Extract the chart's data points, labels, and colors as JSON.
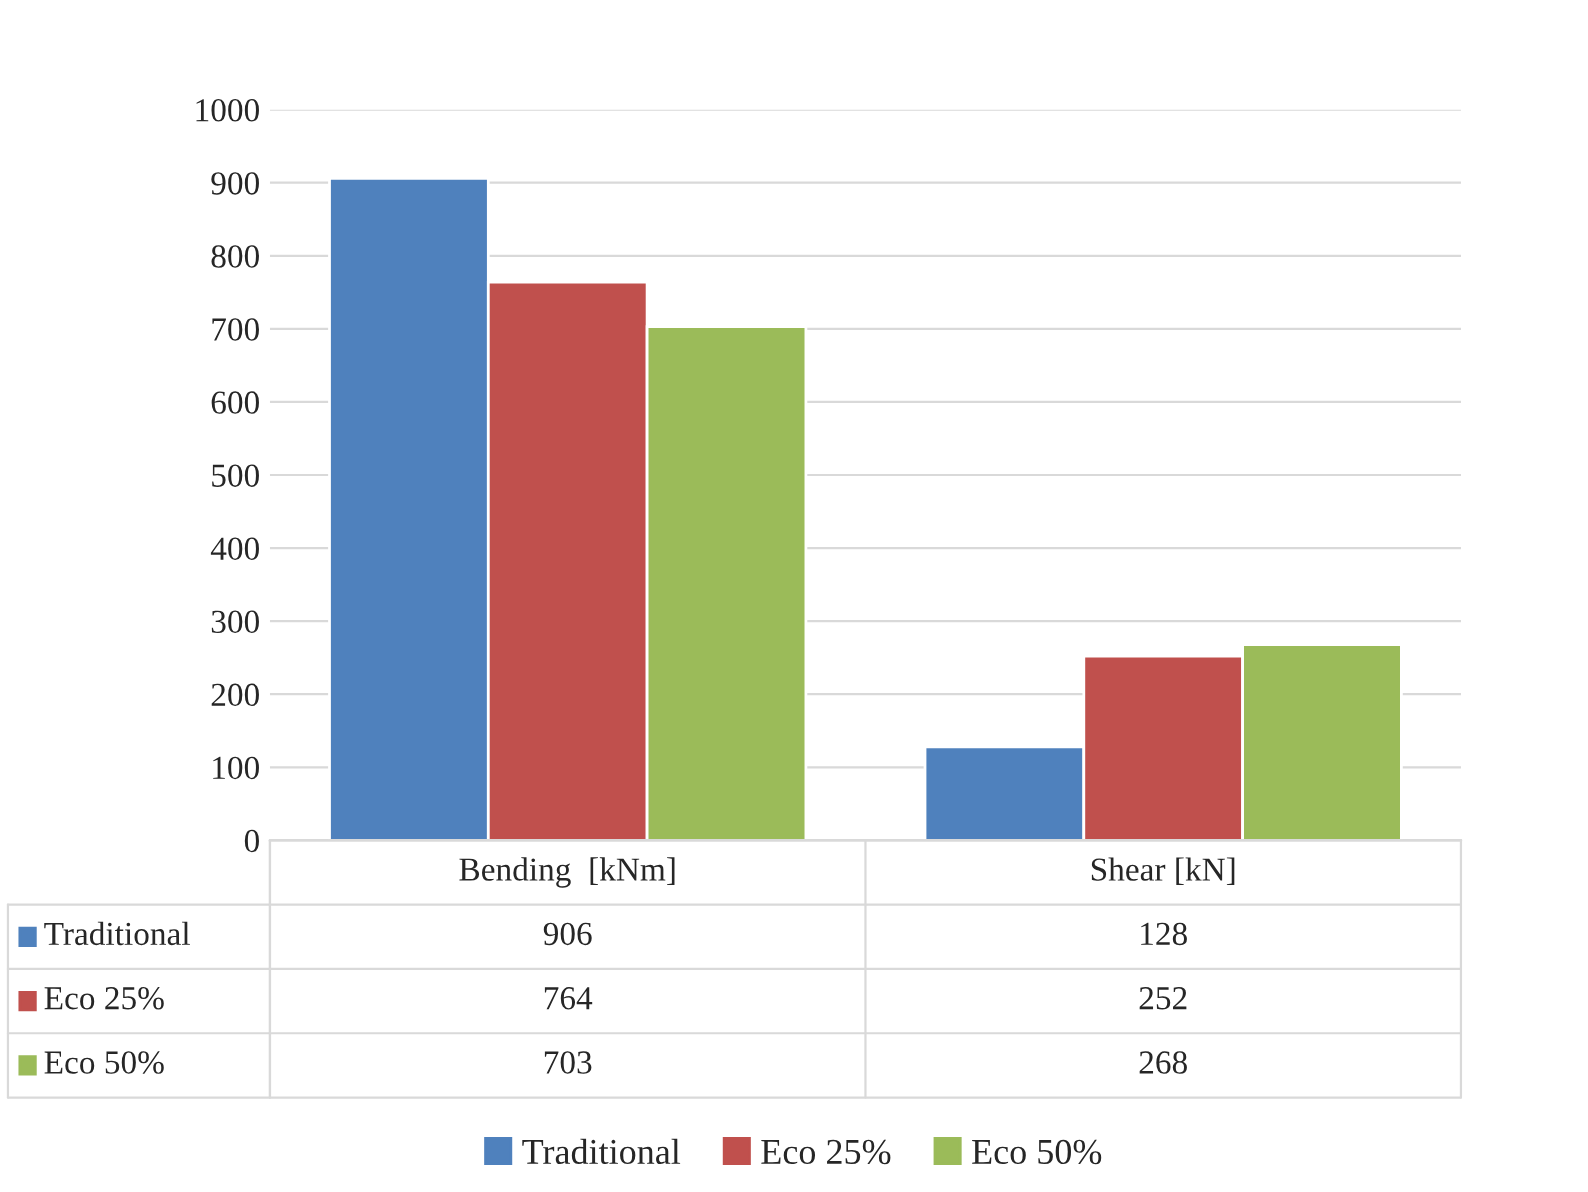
{
  "chart_data": {
    "type": "bar",
    "categories": [
      "Bending  [kNm]",
      "Shear [kN]"
    ],
    "series": [
      {
        "name": "Traditional",
        "color": "#4f81bd",
        "values": [
          906,
          128
        ]
      },
      {
        "name": "Eco 25%",
        "color": "#c0504d",
        "values": [
          764,
          252
        ]
      },
      {
        "name": "Eco 50%",
        "color": "#9bbb59",
        "values": [
          703,
          268
        ]
      }
    ],
    "ylim": [
      0,
      1000
    ],
    "yticks": [
      0,
      100,
      200,
      300,
      400,
      500,
      600,
      700,
      800,
      900,
      1000
    ],
    "grid": "y",
    "legend": "bottom",
    "data_labels": true
  }
}
